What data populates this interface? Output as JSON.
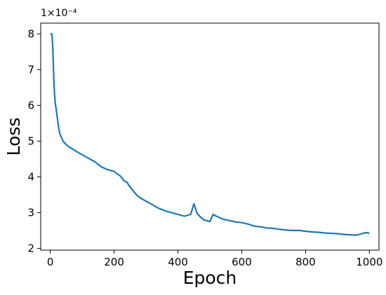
{
  "chart_data": {
    "type": "line",
    "title": "",
    "xlabel": "Epoch",
    "ylabel": "Loss",
    "y_offset_label": "1×10⁻⁴",
    "y_scale_factor": 0.0001,
    "xlim": [
      -30,
      1030
    ],
    "ylim": [
      1.95,
      8.3
    ],
    "grid": false,
    "x_ticks": [
      0,
      200,
      400,
      600,
      800,
      1000
    ],
    "x_tick_labels": [
      "0",
      "200",
      "400",
      "600",
      "800",
      "1000"
    ],
    "y_ticks": [
      2,
      3,
      4,
      5,
      6,
      7,
      8
    ],
    "y_tick_labels": [
      "2",
      "3",
      "4",
      "5",
      "6",
      "7",
      "8"
    ],
    "series": [
      {
        "color": "#1f77b4",
        "x": [
          0,
          5,
          8,
          10,
          12,
          15,
          20,
          25,
          30,
          35,
          40,
          50,
          60,
          70,
          80,
          100,
          120,
          140,
          150,
          160,
          180,
          200,
          210,
          220,
          230,
          240,
          250,
          260,
          270,
          280,
          300,
          320,
          340,
          360,
          380,
          400,
          420,
          440,
          450,
          460,
          470,
          480,
          500,
          510,
          520,
          540,
          560,
          580,
          600,
          620,
          640,
          660,
          680,
          700,
          720,
          740,
          760,
          780,
          800,
          820,
          840,
          860,
          880,
          900,
          920,
          940,
          960,
          980,
          990,
          1000
        ],
        "y": [
          8.0,
          8.0,
          7.6,
          7.0,
          6.5,
          6.1,
          5.8,
          5.45,
          5.2,
          5.1,
          5.0,
          4.9,
          4.83,
          4.78,
          4.72,
          4.62,
          4.52,
          4.42,
          4.35,
          4.28,
          4.2,
          4.15,
          4.08,
          4.02,
          3.9,
          3.85,
          3.72,
          3.6,
          3.5,
          3.42,
          3.32,
          3.22,
          3.12,
          3.05,
          3.0,
          2.95,
          2.9,
          2.95,
          3.25,
          2.98,
          2.88,
          2.8,
          2.75,
          2.95,
          2.9,
          2.82,
          2.78,
          2.74,
          2.72,
          2.68,
          2.62,
          2.6,
          2.57,
          2.56,
          2.53,
          2.51,
          2.5,
          2.5,
          2.48,
          2.46,
          2.45,
          2.43,
          2.42,
          2.41,
          2.39,
          2.38,
          2.37,
          2.42,
          2.44,
          2.42
        ]
      }
    ]
  }
}
